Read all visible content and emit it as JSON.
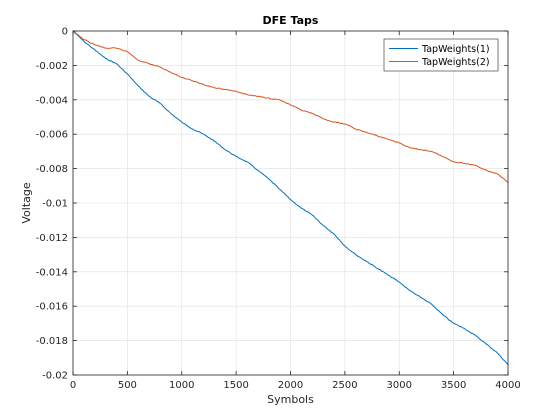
{
  "chart_data": {
    "type": "line",
    "title": "DFE Taps",
    "xlabel": "Symbols",
    "ylabel": "Voltage",
    "xlim": [
      0,
      4000
    ],
    "ylim": [
      -0.02,
      0
    ],
    "xticks": [
      0,
      500,
      1000,
      1500,
      2000,
      2500,
      3000,
      3500,
      4000
    ],
    "xtick_labels": [
      "0",
      "500",
      "1000",
      "1500",
      "2000",
      "2500",
      "3000",
      "3500",
      "4000"
    ],
    "yticks": [
      0,
      -0.002,
      -0.004,
      -0.006,
      -0.008,
      -0.01,
      -0.012,
      -0.014,
      -0.016,
      -0.018,
      -0.02
    ],
    "ytick_labels": [
      "0",
      "-0.002",
      "-0.004",
      "-0.006",
      "-0.008",
      "-0.01",
      "-0.012",
      "-0.014",
      "-0.016",
      "-0.018",
      "-0.02"
    ],
    "grid": true,
    "legend_position": "top-right",
    "series": [
      {
        "name": "TapWeights(1)",
        "color": "#0072BD",
        "x": [
          0,
          100,
          200,
          300,
          400,
          500,
          600,
          700,
          800,
          900,
          1000,
          1100,
          1200,
          1300,
          1400,
          1500,
          1600,
          1700,
          1800,
          1900,
          2000,
          2100,
          2200,
          2300,
          2400,
          2500,
          2600,
          2700,
          2800,
          2900,
          3000,
          3100,
          3200,
          3300,
          3400,
          3500,
          3600,
          3700,
          3800,
          3900,
          4000
        ],
        "y": [
          0,
          -0.0006,
          -0.0011,
          -0.0016,
          -0.0019,
          -0.0025,
          -0.0032,
          -0.0038,
          -0.0042,
          -0.0048,
          -0.0053,
          -0.0057,
          -0.006,
          -0.0064,
          -0.0069,
          -0.0073,
          -0.0076,
          -0.0081,
          -0.0086,
          -0.0092,
          -0.0098,
          -0.0103,
          -0.0107,
          -0.0113,
          -0.0118,
          -0.0125,
          -0.013,
          -0.0134,
          -0.0138,
          -0.0142,
          -0.0146,
          -0.0151,
          -0.0155,
          -0.0159,
          -0.0165,
          -0.017,
          -0.0173,
          -0.0177,
          -0.0182,
          -0.0187,
          -0.0194
        ]
      },
      {
        "name": "TapWeights(2)",
        "color": "#D95319",
        "x": [
          0,
          100,
          200,
          300,
          400,
          500,
          600,
          700,
          800,
          900,
          1000,
          1100,
          1200,
          1300,
          1400,
          1500,
          1600,
          1700,
          1800,
          1900,
          2000,
          2100,
          2200,
          2300,
          2400,
          2500,
          2600,
          2700,
          2800,
          2900,
          3000,
          3100,
          3200,
          3300,
          3400,
          3500,
          3600,
          3700,
          3800,
          3900,
          4000
        ],
        "y": [
          0,
          -0.0005,
          -0.0008,
          -0.001,
          -0.001,
          -0.0012,
          -0.0017,
          -0.0019,
          -0.0021,
          -0.0024,
          -0.0027,
          -0.0029,
          -0.0031,
          -0.0033,
          -0.0034,
          -0.0035,
          -0.0037,
          -0.0038,
          -0.0039,
          -0.004,
          -0.0043,
          -0.0046,
          -0.0048,
          -0.0051,
          -0.0053,
          -0.0054,
          -0.0057,
          -0.0059,
          -0.0061,
          -0.0063,
          -0.0065,
          -0.0068,
          -0.0069,
          -0.007,
          -0.0073,
          -0.0076,
          -0.0077,
          -0.0078,
          -0.0081,
          -0.0083,
          -0.0088
        ]
      }
    ]
  }
}
